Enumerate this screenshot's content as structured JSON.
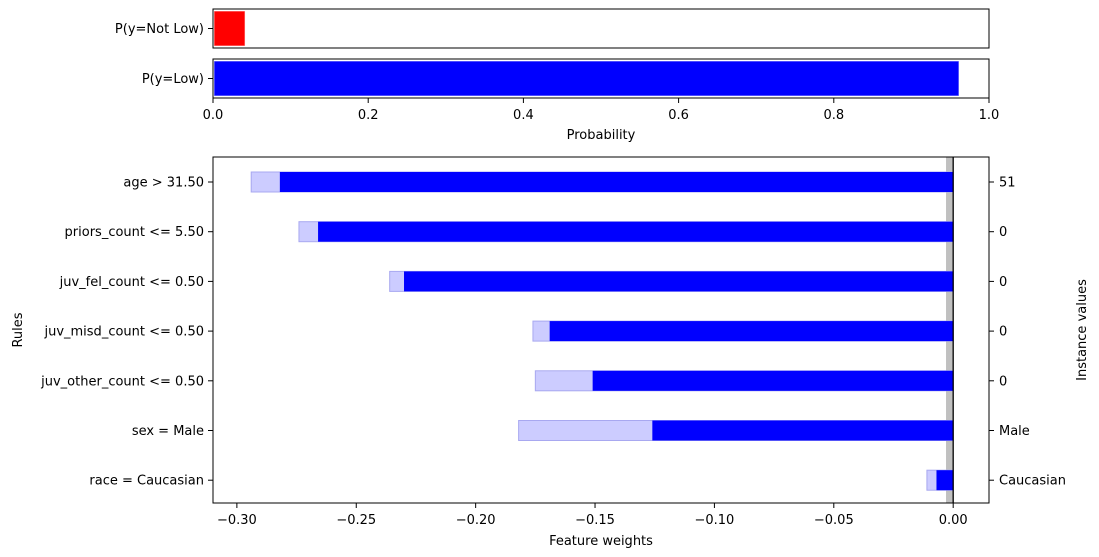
{
  "chart_data": [
    {
      "type": "bar",
      "orientation": "horizontal",
      "xlabel": "Probability",
      "xlim": [
        0,
        1
      ],
      "xticks": [
        "0.0",
        "0.2",
        "0.4",
        "0.6",
        "0.8",
        "1.0"
      ],
      "categories": [
        "P(y=Not Low)",
        "P(y=Low)"
      ],
      "values": [
        0.04,
        0.96
      ],
      "colors": [
        "#ff0000",
        "#0000ff"
      ]
    },
    {
      "type": "bar",
      "orientation": "horizontal",
      "xlabel": "Feature weights",
      "ylabel": "Rules",
      "ylabel_right": "Instance values",
      "xlim": [
        -0.31,
        0.015
      ],
      "xticks": [
        "−0.30",
        "−0.25",
        "−0.20",
        "−0.15",
        "−0.10",
        "−0.05",
        "0.00"
      ],
      "categories": [
        "age > 31.50",
        "priors_count <= 5.50",
        "juv_fel_count <= 0.50",
        "juv_misd_count <= 0.50",
        "juv_other_count <= 0.50",
        "sex = Male",
        "race = Caucasian"
      ],
      "instance_values": [
        "51",
        "0",
        "0",
        "0",
        "0",
        "Male",
        "Caucasian"
      ],
      "series": [
        {
          "values": [
            -0.282,
            -0.266,
            -0.23,
            -0.169,
            -0.151,
            -0.126,
            -0.007
          ],
          "color": "#0000ff"
        },
        {
          "values": [
            -0.294,
            -0.274,
            -0.236,
            -0.176,
            -0.175,
            -0.182,
            -0.011
          ],
          "color": "#ccccff"
        }
      ],
      "zero_band": [
        -0.003,
        0.0
      ],
      "zero_band_color": "#c0c0c0"
    }
  ]
}
